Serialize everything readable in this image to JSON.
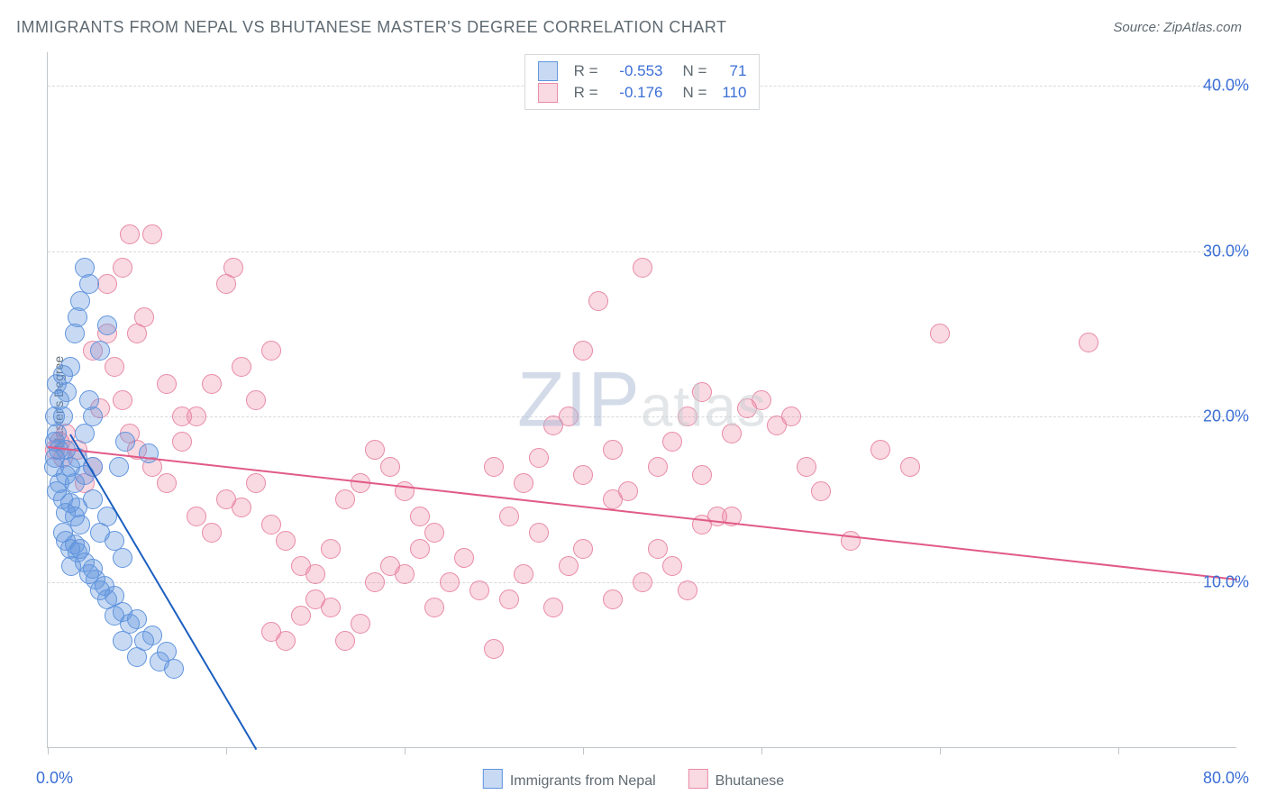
{
  "title": "IMMIGRANTS FROM NEPAL VS BHUTANESE MASTER'S DEGREE CORRELATION CHART",
  "source_label": "Source: ",
  "source_name": "ZipAtlas.com",
  "y_axis_label": "Master's Degree",
  "x_min": 0,
  "x_max": 80,
  "y_min": 0,
  "y_max": 42,
  "y_ticks": [
    10,
    20,
    30,
    40
  ],
  "y_tick_labels": [
    "10.0%",
    "20.0%",
    "30.0%",
    "40.0%"
  ],
  "x_tick_positions": [
    0,
    12,
    24,
    36,
    48,
    60,
    72
  ],
  "x_label_0": "0.0%",
  "x_label_80": "80.0%",
  "colors": {
    "series1_fill": "rgba(96,148,222,0.35)",
    "series1_stroke": "#6094de",
    "series1_line": "#1b5fc0",
    "series2_fill": "rgba(236,128,158,0.30)",
    "series2_stroke": "#e88aa6",
    "series2_line": "#e15a87",
    "grid": "#d6d9db",
    "text": "#5f6a72",
    "value_text": "#3b6fd6"
  },
  "legend_top": [
    {
      "swatch": "s1",
      "r_label": "R =",
      "r_value": "-0.553",
      "n_label": "N =",
      "n_value": "71"
    },
    {
      "swatch": "s2",
      "r_label": "R =",
      "r_value": "-0.176",
      "n_label": "N =",
      "n_value": "110"
    }
  ],
  "legend_bottom": [
    {
      "swatch": "s1",
      "label": "Immigrants from Nepal"
    },
    {
      "swatch": "s2",
      "label": "Bhutanese"
    }
  ],
  "trend_lines": {
    "s1": {
      "x1": 1.5,
      "y1": 19,
      "x2": 14,
      "y2": 0
    },
    "s2": {
      "x1": 0,
      "y1": 18.2,
      "x2": 80,
      "y2": 10.2
    }
  },
  "series1_points": [
    [
      0.5,
      18.5
    ],
    [
      0.6,
      19
    ],
    [
      0.7,
      18
    ],
    [
      0.5,
      20
    ],
    [
      0.8,
      21
    ],
    [
      0.6,
      22
    ],
    [
      1,
      22.5
    ],
    [
      0.4,
      17
    ],
    [
      0.5,
      17.5
    ],
    [
      1.2,
      18
    ],
    [
      1,
      20
    ],
    [
      1.3,
      21.5
    ],
    [
      1.5,
      23
    ],
    [
      2,
      26
    ],
    [
      1.8,
      25
    ],
    [
      2.2,
      27
    ],
    [
      2.5,
      29
    ],
    [
      2.8,
      28
    ],
    [
      0.8,
      16
    ],
    [
      0.6,
      15.5
    ],
    [
      1,
      15
    ],
    [
      1.2,
      14.2
    ],
    [
      1.5,
      14.8
    ],
    [
      1.8,
      14
    ],
    [
      2,
      14.5
    ],
    [
      2.2,
      13.5
    ],
    [
      1,
      13
    ],
    [
      1.2,
      12.5
    ],
    [
      1.5,
      12
    ],
    [
      1.8,
      12.3
    ],
    [
      2,
      11.8
    ],
    [
      2.2,
      12
    ],
    [
      2.5,
      11.2
    ],
    [
      2.8,
      10.5
    ],
    [
      3,
      10.8
    ],
    [
      3.2,
      10.2
    ],
    [
      3.5,
      9.5
    ],
    [
      3.8,
      9.8
    ],
    [
      4,
      9
    ],
    [
      4.5,
      9.2
    ],
    [
      5,
      8.2
    ],
    [
      5.5,
      7.5
    ],
    [
      6,
      7.8
    ],
    [
      6.5,
      6.5
    ],
    [
      7,
      6.8
    ],
    [
      7.5,
      5.2
    ],
    [
      8,
      5.8
    ],
    [
      8.5,
      4.8
    ],
    [
      3,
      15
    ],
    [
      3.5,
      13
    ],
    [
      4,
      14
    ],
    [
      4.5,
      12.5
    ],
    [
      5,
      11.5
    ],
    [
      4.8,
      17
    ],
    [
      5.2,
      18.5
    ],
    [
      6,
      5.5
    ],
    [
      6.8,
      17.8
    ],
    [
      2.5,
      19
    ],
    [
      3,
      20
    ],
    [
      3.5,
      24
    ],
    [
      4,
      25.5
    ],
    [
      2.8,
      21
    ],
    [
      1.2,
      16.5
    ],
    [
      1.5,
      17
    ],
    [
      1.8,
      16
    ],
    [
      2,
      17.5
    ],
    [
      2.5,
      16.5
    ],
    [
      3,
      17
    ],
    [
      4.5,
      8
    ],
    [
      5,
      6.5
    ],
    [
      1.6,
      11
    ]
  ],
  "series2_points": [
    [
      0.5,
      18
    ],
    [
      0.8,
      18.5
    ],
    [
      1,
      17.5
    ],
    [
      1.2,
      19
    ],
    [
      2,
      18
    ],
    [
      2.5,
      16
    ],
    [
      3,
      17
    ],
    [
      3.5,
      20.5
    ],
    [
      4,
      28
    ],
    [
      5,
      29
    ],
    [
      5.5,
      31
    ],
    [
      6,
      25
    ],
    [
      6.5,
      26
    ],
    [
      7,
      31
    ],
    [
      8,
      22
    ],
    [
      9,
      20
    ],
    [
      3,
      24
    ],
    [
      4,
      25
    ],
    [
      4.5,
      23
    ],
    [
      5,
      21
    ],
    [
      5.5,
      19
    ],
    [
      6,
      18
    ],
    [
      7,
      17
    ],
    [
      8,
      16
    ],
    [
      9,
      18.5
    ],
    [
      10,
      20
    ],
    [
      11,
      22
    ],
    [
      12,
      28
    ],
    [
      12.5,
      29
    ],
    [
      13,
      23
    ],
    [
      14,
      21
    ],
    [
      15,
      24
    ],
    [
      10,
      14
    ],
    [
      11,
      13
    ],
    [
      12,
      15
    ],
    [
      13,
      14.5
    ],
    [
      14,
      16
    ],
    [
      15,
      13.5
    ],
    [
      16,
      12.5
    ],
    [
      17,
      11
    ],
    [
      18,
      10.5
    ],
    [
      19,
      12
    ],
    [
      20,
      15
    ],
    [
      21,
      16
    ],
    [
      22,
      18
    ],
    [
      23,
      17
    ],
    [
      24,
      15.5
    ],
    [
      25,
      14
    ],
    [
      26,
      13
    ],
    [
      15,
      7
    ],
    [
      16,
      6.5
    ],
    [
      17,
      8
    ],
    [
      18,
      9
    ],
    [
      19,
      8.5
    ],
    [
      20,
      6.5
    ],
    [
      21,
      7.5
    ],
    [
      22,
      10
    ],
    [
      23,
      11
    ],
    [
      24,
      10.5
    ],
    [
      25,
      12
    ],
    [
      26,
      8.5
    ],
    [
      27,
      10
    ],
    [
      28,
      11.5
    ],
    [
      29,
      9.5
    ],
    [
      30,
      6
    ],
    [
      31,
      14
    ],
    [
      32,
      16
    ],
    [
      33,
      17.5
    ],
    [
      34,
      19.5
    ],
    [
      35,
      20
    ],
    [
      36,
      24
    ],
    [
      37,
      27
    ],
    [
      38,
      15
    ],
    [
      30,
      17
    ],
    [
      31,
      9
    ],
    [
      32,
      10.5
    ],
    [
      33,
      13
    ],
    [
      34,
      8.5
    ],
    [
      35,
      11
    ],
    [
      36,
      16.5
    ],
    [
      38,
      18
    ],
    [
      39,
      15.5
    ],
    [
      40,
      29
    ],
    [
      41,
      17
    ],
    [
      42,
      18.5
    ],
    [
      43,
      20
    ],
    [
      44,
      16.5
    ],
    [
      45,
      14
    ],
    [
      46,
      19
    ],
    [
      47,
      20.5
    ],
    [
      48,
      21
    ],
    [
      49,
      19.5
    ],
    [
      50,
      20
    ],
    [
      51,
      17
    ],
    [
      52,
      15.5
    ],
    [
      40,
      10
    ],
    [
      41,
      12
    ],
    [
      42,
      11
    ],
    [
      43,
      9.5
    ],
    [
      44,
      13.5
    ],
    [
      38,
      9
    ],
    [
      36,
      12
    ],
    [
      54,
      12.5
    ],
    [
      56,
      18
    ],
    [
      58,
      17
    ],
    [
      60,
      25
    ],
    [
      44,
      21.5
    ],
    [
      46,
      14
    ],
    [
      70,
      24.5
    ]
  ],
  "watermark": {
    "part1": "ZIP",
    "part2": "atlas"
  }
}
